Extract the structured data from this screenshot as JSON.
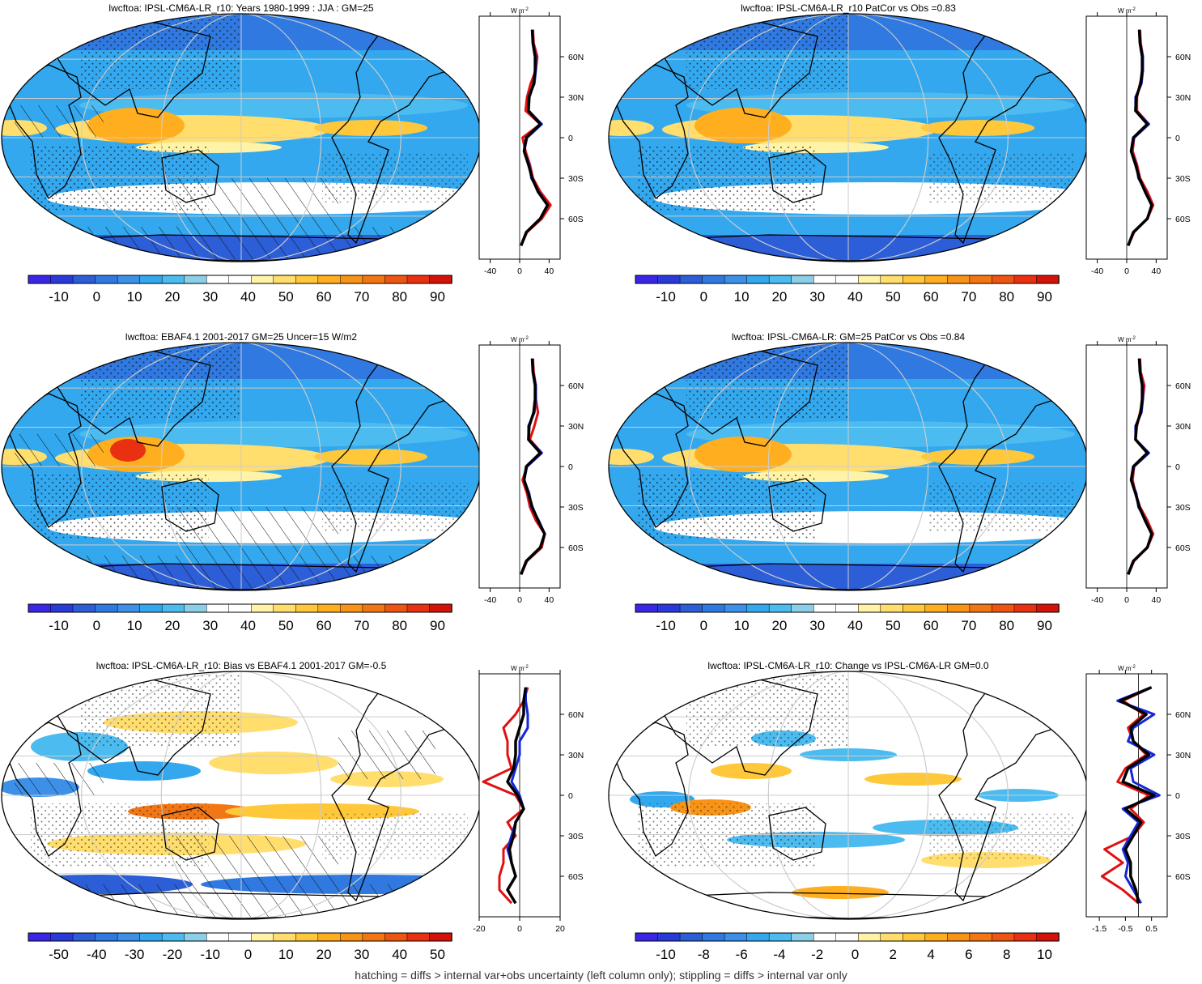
{
  "footer": "hatching = diffs > internal var+obs uncertainty (left column only); stippling = diffs > internal var only",
  "palettes": {
    "full": [
      "#3a26e6",
      "#2a3ad8",
      "#2c5ed8",
      "#2f79e0",
      "#3d90e8",
      "#33a8ee",
      "#4cbcf0",
      "#8ccfe8",
      "#ffffff",
      "#ffffff",
      "#fff3a8",
      "#ffde6e",
      "#ffc83a",
      "#ffae1f",
      "#f79316",
      "#f27614",
      "#ee5512",
      "#e93010",
      "#d31209"
    ],
    "diff": [
      "#3a26e6",
      "#2a3ad8",
      "#2c5ed8",
      "#2f79e0",
      "#3d90e8",
      "#33a8ee",
      "#4cbcf0",
      "#8ccfe8",
      "#ffffff",
      "#ffffff",
      "#fff3a8",
      "#ffde6e",
      "#ffc83a",
      "#ffae1f",
      "#f79316",
      "#f27614",
      "#ee5512",
      "#e93010",
      "#d31209"
    ]
  },
  "profile_colors": {
    "model": "#e01010",
    "obs": "#1428d8",
    "ensemble": "#000000"
  },
  "panels": [
    {
      "id": "model-mean",
      "title": "lwcftoa: IPSL-CM6A-LR_r10: Years 1980-1999 : JJA : GM=25",
      "palette": "full",
      "colorbar_labels": [
        "-10",
        "0",
        "10",
        "20",
        "30",
        "40",
        "50",
        "60",
        "70",
        "80",
        "90"
      ],
      "profile_x_ticks": [
        "-40",
        "0",
        "40"
      ],
      "profile_x_range": [
        -55,
        55
      ],
      "profile_unit": "W m",
      "profile_unit_exp": "-2",
      "lat_labels": [
        "60N",
        "30N",
        "0",
        "30S",
        "60S"
      ],
      "hatched": true,
      "stippled": true,
      "profiles": {
        "lat": [
          80,
          70,
          60,
          50,
          40,
          30,
          20,
          10,
          0,
          -10,
          -20,
          -30,
          -40,
          -50,
          -60,
          -70,
          -80
        ],
        "model": [
          18,
          19,
          24,
          22,
          15,
          10,
          8,
          28,
          4,
          8,
          14,
          18,
          28,
          42,
          30,
          10,
          2
        ],
        "obs": [
          17,
          18,
          22,
          22,
          20,
          12,
          12,
          30,
          10,
          6,
          13,
          16,
          26,
          38,
          28,
          9,
          2
        ],
        "ensemble": [
          17,
          18,
          21,
          21,
          19,
          13,
          12,
          28,
          9,
          6,
          12,
          17,
          25,
          38,
          28,
          9,
          2
        ]
      }
    },
    {
      "id": "model-patcor",
      "title": "lwcftoa: IPSL-CM6A-LR_r10 PatCor vs Obs =0.83",
      "palette": "full",
      "colorbar_labels": [
        "-10",
        "0",
        "10",
        "20",
        "30",
        "40",
        "50",
        "60",
        "70",
        "80",
        "90"
      ],
      "profile_x_ticks": [
        "-40",
        "0",
        "40"
      ],
      "profile_x_range": [
        -55,
        55
      ],
      "profile_unit": "W m",
      "profile_unit_exp": "-2",
      "lat_labels": [
        "60N",
        "30N",
        "0",
        "30S",
        "60S"
      ],
      "hatched": false,
      "stippled": true,
      "profiles": {
        "lat": [
          80,
          70,
          60,
          50,
          40,
          30,
          20,
          10,
          0,
          -10,
          -20,
          -30,
          -40,
          -50,
          -60,
          -70,
          -80
        ],
        "model": [
          18,
          19,
          22,
          22,
          18,
          14,
          14,
          30,
          10,
          8,
          14,
          18,
          28,
          36,
          28,
          10,
          2
        ],
        "obs": [
          17,
          18,
          22,
          22,
          20,
          12,
          12,
          30,
          10,
          6,
          13,
          16,
          26,
          34,
          28,
          9,
          2
        ],
        "ensemble": [
          17,
          18,
          21,
          21,
          19,
          13,
          12,
          28,
          9,
          6,
          12,
          17,
          25,
          34,
          28,
          9,
          2
        ]
      }
    },
    {
      "id": "obs",
      "title": "lwcftoa: EBAF4.1 2001-2017 GM=25 Uncer=15 W/m2",
      "palette": "full",
      "colorbar_labels": [
        "-10",
        "0",
        "10",
        "20",
        "30",
        "40",
        "50",
        "60",
        "70",
        "80",
        "90"
      ],
      "profile_x_ticks": [
        "-40",
        "0",
        "40"
      ],
      "profile_x_range": [
        -55,
        55
      ],
      "profile_unit": "W m",
      "profile_unit_exp": "-2",
      "lat_labels": [
        "60N",
        "30N",
        "0",
        "30S",
        "60S"
      ],
      "hatched": true,
      "stippled": true,
      "profiles": {
        "lat": [
          80,
          70,
          60,
          50,
          40,
          30,
          20,
          10,
          0,
          -10,
          -20,
          -30,
          -40,
          -50,
          -60,
          -70,
          -80
        ],
        "model": [
          18,
          19,
          22,
          22,
          25,
          20,
          14,
          30,
          10,
          4,
          10,
          14,
          22,
          34,
          30,
          10,
          2
        ],
        "obs": [
          17,
          18,
          22,
          22,
          20,
          12,
          12,
          30,
          10,
          6,
          13,
          16,
          26,
          34,
          28,
          9,
          2
        ],
        "ensemble": [
          17,
          18,
          21,
          21,
          19,
          13,
          12,
          28,
          9,
          6,
          12,
          17,
          25,
          34,
          28,
          9,
          2
        ]
      }
    },
    {
      "id": "ensemble-patcor",
      "title": "lwcftoa: IPSL-CM6A-LR: GM=25 PatCor vs Obs =0.84",
      "palette": "full",
      "colorbar_labels": [
        "-10",
        "0",
        "10",
        "20",
        "30",
        "40",
        "50",
        "60",
        "70",
        "80",
        "90"
      ],
      "profile_x_ticks": [
        "-40",
        "0",
        "40"
      ],
      "profile_x_range": [
        -55,
        55
      ],
      "profile_unit": "W m",
      "profile_unit_exp": "-2",
      "lat_labels": [
        "60N",
        "30N",
        "0",
        "30S",
        "60S"
      ],
      "hatched": false,
      "stippled": true,
      "profiles": {
        "lat": [
          80,
          70,
          60,
          50,
          40,
          30,
          20,
          10,
          0,
          -10,
          -20,
          -30,
          -40,
          -50,
          -60,
          -70,
          -80
        ],
        "model": [
          18,
          19,
          24,
          22,
          18,
          14,
          12,
          30,
          10,
          8,
          12,
          18,
          28,
          36,
          28,
          10,
          2
        ],
        "obs": [
          17,
          18,
          22,
          22,
          20,
          12,
          12,
          30,
          10,
          6,
          13,
          16,
          26,
          34,
          28,
          9,
          2
        ],
        "ensemble": [
          17,
          18,
          21,
          21,
          19,
          13,
          12,
          28,
          9,
          6,
          12,
          17,
          25,
          34,
          28,
          9,
          2
        ]
      }
    },
    {
      "id": "bias",
      "title": "lwcftoa: IPSL-CM6A-LR_r10: Bias vs EBAF4.1 2001-2017 GM=-0.5",
      "palette": "diff",
      "colorbar_labels": [
        "-50",
        "-40",
        "-30",
        "-20",
        "-10",
        "0",
        "10",
        "20",
        "30",
        "40",
        "50"
      ],
      "profile_x_ticks": [
        "-20",
        "0",
        "20"
      ],
      "profile_x_range": [
        -20,
        20
      ],
      "profile_unit": "W m",
      "profile_unit_exp": "-2",
      "lat_labels": [
        "60N",
        "30N",
        "0",
        "30S",
        "60S"
      ],
      "hatched": true,
      "stippled": true,
      "profiles": {
        "lat": [
          80,
          70,
          60,
          50,
          40,
          30,
          20,
          10,
          0,
          -10,
          -20,
          -30,
          -40,
          -50,
          -60,
          -70,
          -80
        ],
        "model": [
          4,
          2,
          -2,
          -8,
          -6,
          -6,
          -4,
          -18,
          -2,
          2,
          -6,
          -2,
          -8,
          -8,
          -10,
          -10,
          -4
        ],
        "obs": [
          3,
          3,
          4,
          4,
          0,
          0,
          -2,
          -4,
          0,
          2,
          -2,
          -4,
          -6,
          -4,
          -2,
          -6,
          -2
        ],
        "ensemble": [
          3,
          2,
          2,
          0,
          -2,
          -2,
          -3,
          -6,
          -1,
          2,
          -2,
          -3,
          -5,
          -4,
          -2,
          -6,
          -2
        ]
      }
    },
    {
      "id": "change",
      "title": "lwcftoa: IPSL-CM6A-LR_r10: Change vs IPSL-CM6A-LR GM=0.0",
      "palette": "diff",
      "colorbar_labels": [
        "-10",
        "-8",
        "-6",
        "-4",
        "-2",
        "0",
        "2",
        "4",
        "6",
        "8",
        "10"
      ],
      "profile_x_ticks": [
        "-1.5",
        "-0.5",
        "0.5"
      ],
      "profile_x_range": [
        -2.0,
        1.1
      ],
      "profile_unit": "W m",
      "profile_unit_exp": "-2",
      "lat_labels": [
        "60N",
        "30N",
        "0",
        "30S",
        "60S"
      ],
      "hatched": false,
      "stippled": true,
      "profiles": {
        "lat": [
          80,
          70,
          60,
          50,
          40,
          30,
          20,
          10,
          0,
          -10,
          -20,
          -30,
          -40,
          -50,
          -60,
          -70,
          -80
        ],
        "model": [
          0.5,
          -0.6,
          0.2,
          -0.4,
          -0.2,
          0.3,
          -0.5,
          -0.8,
          0.4,
          -0.3,
          0.2,
          -0.2,
          -1.3,
          -0.6,
          -1.4,
          -0.6,
          0.0
        ],
        "obs": [
          0.5,
          -0.8,
          0.6,
          -0.2,
          -0.4,
          0.6,
          -0.3,
          -0.2,
          0.8,
          -0.6,
          0.0,
          -0.3,
          -0.6,
          -0.4,
          -0.5,
          -0.2,
          0.1
        ],
        "ensemble": [
          0.5,
          -0.7,
          0.3,
          -0.3,
          -0.2,
          0.4,
          -0.4,
          -0.6,
          0.6,
          -0.5,
          0.1,
          -0.2,
          -0.5,
          -0.3,
          -0.3,
          -0.1,
          0.0
        ]
      }
    }
  ]
}
